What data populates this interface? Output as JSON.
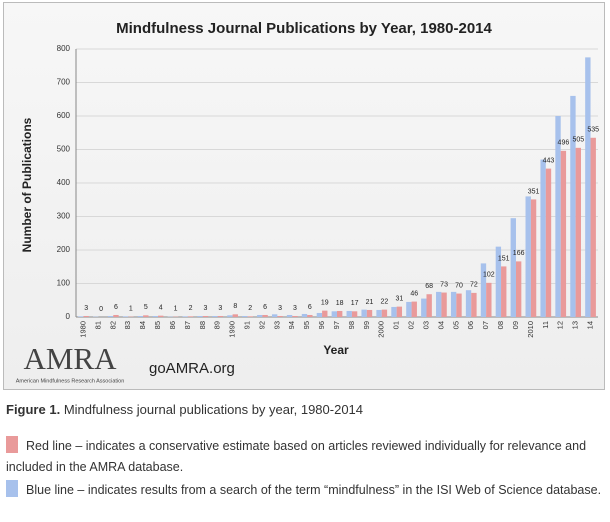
{
  "chart_data": {
    "type": "bar",
    "title": "Mindfulness Journal Publications by Year, 1980-2014",
    "x_label": "Year",
    "y_label": "Number of Publications",
    "categories": [
      "1980",
      "81",
      "82",
      "83",
      "84",
      "85",
      "86",
      "87",
      "88",
      "89",
      "1990",
      "91",
      "92",
      "93",
      "94",
      "95",
      "96",
      "97",
      "98",
      "99",
      "2000",
      "01",
      "02",
      "03",
      "04",
      "05",
      "06",
      "07",
      "08",
      "09",
      "2010",
      "11",
      "12",
      "13",
      "14"
    ],
    "series": [
      {
        "color": "#a7c1ec",
        "values": [
          2,
          1,
          3,
          2,
          3,
          3,
          1,
          2,
          3,
          3,
          5,
          3,
          6,
          8,
          6,
          9,
          12,
          17,
          18,
          22,
          21,
          30,
          45,
          55,
          75,
          75,
          80,
          160,
          210,
          295,
          360,
          470,
          600,
          660,
          775
        ]
      },
      {
        "color": "#e99a9a",
        "values": [
          3,
          0,
          6,
          1,
          5,
          4,
          1,
          2,
          3,
          3,
          8,
          2,
          6,
          3,
          3,
          6,
          19,
          18,
          17,
          21,
          22,
          31,
          46,
          68,
          73,
          70,
          72,
          102,
          151,
          166,
          351,
          443,
          496,
          505,
          535
        ]
      }
    ],
    "ylim": [
      0,
      800
    ],
    "yticks": [
      0,
      100,
      200,
      300,
      400,
      500,
      600,
      700,
      800
    ],
    "grid": true
  },
  "logo": {
    "name": "AMRA",
    "full_name": "American Mindfulness Research Association",
    "url": "goAMRA.org"
  },
  "caption": {
    "label": "Figure 1.",
    "text": "Mindfulness journal publications by year, 1980-2014"
  },
  "notes": [
    "Red line – indicates a conservative estimate based on articles reviewed individually for relevance and included in the AMRA database.",
    "Blue line – indicates results from a search of the term “mindfulness” in the ISI Web of Science database."
  ]
}
